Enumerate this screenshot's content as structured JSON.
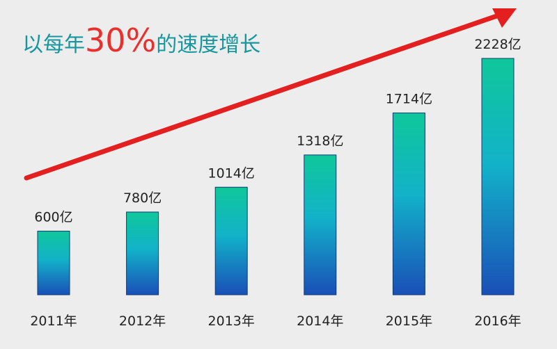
{
  "chart_data": {
    "type": "bar",
    "title": {
      "prefix": "以每年",
      "highlight": "30%",
      "suffix": "的速度增长"
    },
    "categories": [
      "2011年",
      "2012年",
      "2013年",
      "2014年",
      "2015年",
      "2016年"
    ],
    "values": [
      600,
      780,
      1014,
      1318,
      1714,
      2228
    ],
    "value_labels": [
      "600亿",
      "780亿",
      "1014亿",
      "1318亿",
      "1714亿",
      "2228亿"
    ],
    "unit": "亿",
    "xlabel": "",
    "ylabel": "",
    "ylim": [
      0,
      2228
    ],
    "grid": false,
    "legend": "none",
    "trend_arrow": true,
    "colors": {
      "bar_top": "#0fc79a",
      "bar_mid": "#12b2c9",
      "bar_bottom": "#1a4fb7",
      "bar_stroke": "#0f3b73",
      "arrow": "#e41f1f",
      "title_text": "#16979e",
      "title_highlight": "#e8312f",
      "background": "#ededed"
    }
  }
}
